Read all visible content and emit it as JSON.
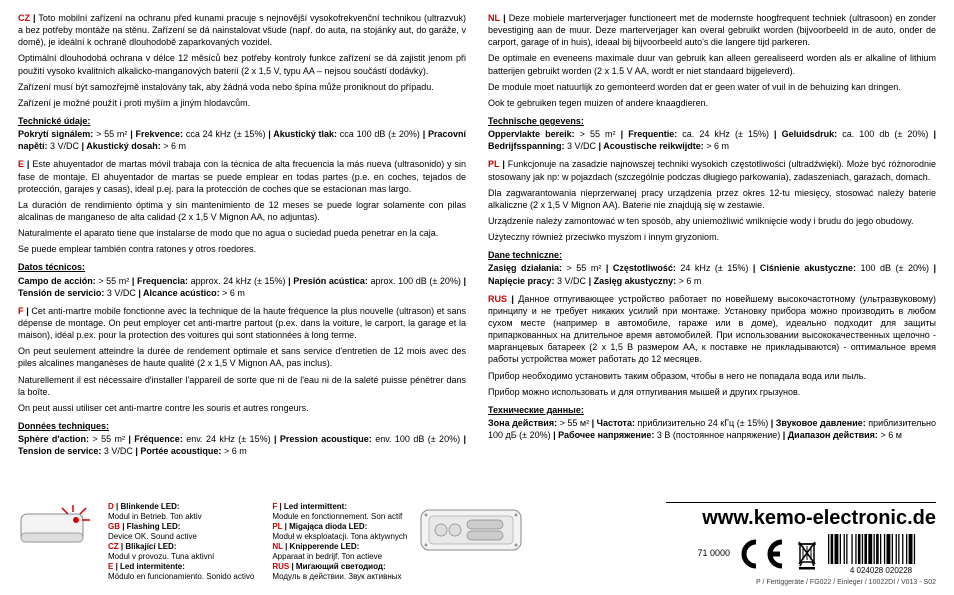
{
  "cz": {
    "lang": "CZ",
    "p1": "Toto mobilní zařízení na ochranu před kunami pracuje s nejnovější vysokofrekvenční technikou (ultrazvuk) a bez potřeby montáže na stěnu. Zařízení se dá nainstalovat všude (např. do auta, na stojánky aut, do garáže, v domě), je ideální k ochraně dlouhodobě zaparkovaných vozidel.",
    "p2": "Optimální dlouhodobá ochrana v délce 12 měsíců bez potřeby kontroly funkce zařízení se dá zajistit jenom při použití vysoko kvalitních alkalicko-manganových baterií (2 x 1,5 V, typu AA – nejsou součástí dodávky).",
    "p3": "Zařízení musí být samozřejmě instalovány tak, aby žádná voda nebo špína může proniknout do případu.",
    "p4": "Zařízení je možné použít i proti myším a jiným hlodavcům.",
    "techhead": "Technické údaje:",
    "tech": "<b>Pokrytí signálem:</b> > 55 m² <b>| Frekvence:</b> cca 24 kHz (± 15%) <b>| Akustický tlak:</b> cca 100 dB (± 20%) <b>| Pracovní napětí:</b> 3 V/DC <b>| Akustický dosah:</b> > 6 m"
  },
  "e": {
    "lang": "E",
    "p1": "Este ahuyentador de martas móvil trabaja con la técnica de alta frecuencia la más nueva (ultrasonido) y sin fase de montaje. El ahuyentador de martas se puede emplear en todas partes (p.e. en coches, tejados de protección, garajes y casas), ideal p.ej. para la protección de coches que se estacionan mas largo.",
    "p2": "La duración de rendimiento óptima y sin mantenimiento de 12 meses se puede lograr solamente con pilas alcalinas de manganeso de alta calidad (2 x 1,5 V Mignon AA, no adjuntas).",
    "p3": "Naturalmente el aparato tiene que instalarse de modo que no agua o suciedad pueda penetrar en la caja.",
    "p4": "Se puede emplear también contra ratones y otros roedores.",
    "techhead": "Datos técnicos:",
    "tech": "<b>Campo de acción:</b> > 55 m² <b>| Frequencia:</b> approx. 24 kHz (± 15%) <b>| Presión acústica:</b> aprox. 100 dB (± 20%) <b>| Tensión de servicio:</b> 3 V/DC <b>| Alcance acústico:</b> > 6 m"
  },
  "f": {
    "lang": "F",
    "p1": "Cet anti-martre mobile fonctionne avec la technique de la haute fréquence la plus nouvelle (ultrason) et sans dépense de montage. On peut employer cet anti-martre partout (p.ex. dans la voiture, le carport, la garage et la maison), idéal p.ex. pour la protection des voitures qui sont stationnées à long terme.",
    "p2": "On peut seulement atteindre la durée de rendement optimale et sans service d'entretien de 12 mois avec des piles alcalines manganèses de haute qualité (2 x 1,5 V Mignon AA, pas inclus).",
    "p3": "Naturellement il est nécessaire d'installer l'appareil de sorte que ni de l'eau ni de la saleté puisse pénétrer dans la boîte.",
    "p4": "On peut aussi utiliser cet anti-martre contre les souris et autres rongeurs.",
    "techhead": "Données techniques:",
    "tech": "<b>Sphère d'action:</b> > 55 m² <b>| Fréquence:</b> env. 24 kHz (± 15%) <b>| Pression acoustique:</b> env. 100 dB (± 20%) <b>| Tension de service:</b> 3 V/DC <b>| Portée acoustique:</b> > 6 m"
  },
  "nl": {
    "lang": "NL",
    "p1": "Deze mobiele marterverjager functioneert met de modernste hoogfrequent techniek (ultrasoon) en zonder bevestiging aan de muur. Deze marterverjager kan overal gebruikt worden (bijvoorbeeld in de auto, onder de carport, garage of in huis), ideaal bij bijvoorbeeld auto's die langere tijd parkeren.",
    "p2": "De optimale en eveneens maximale duur van gebruik kan alleen gerealiseerd worden als er alkaline of lithium batterijen gebruikt worden (2 x 1.5 V AA, wordt er niet standaard bijgeleverd).",
    "p3": "De module moet natuurlijk zo gemonteerd worden dat er geen water of vuil in de behuizing kan dringen.",
    "p4": "Ook te gebruiken tegen muizen of andere knaagdieren.",
    "techhead": "Technische gegevens:",
    "tech": "<b>Oppervlakte bereik:</b> > 55 m² <b>| Frequentie:</b> ca. 24 kHz (± 15%) <b>| Geluidsdruk:</b> ca. 100 db (± 20%) <b>| Bedrijfsspanning:</b> 3 V/DC <b>| Acoustische reikwijdte:</b> > 6 m"
  },
  "pl": {
    "lang": "PL",
    "p1": "Funkcjonuje na zasadzie najnowszej techniki wysokich częstotliwości (ultradźwięki). Może być różnorodnie stosowany jak np: w pojazdach (szczególnie podczas długiego parkowania), zadaszeniach, garażach, domach.",
    "p2": "Dla zagwarantowania nieprzerwanej pracy urządzenia przez okres 12-tu miesięcy, stosować należy baterie alkaliczne (2 x 1,5 V Mignon AA). Baterie nie znajdują się w zestawie.",
    "p3": "Urządzenie należy zamontować w ten sposób, aby uniemożliwić wniknięcie wody i brudu do jego obudowy.",
    "p4": "Użyteczny również przeciwko myszom i innym gryzoniom.",
    "techhead": "Dane techniczne:",
    "tech": "<b>Zasięg działania:</b> > 55 m² <b>| Częstotliwość:</b> 24 kHz (± 15%) <b>| Ciśnienie akustyczne:</b> 100 dB (± 20%) <b>| Napięcie pracy:</b> 3 V/DC <b>| Zasięg akustyczny:</b> > 6 m"
  },
  "rus": {
    "lang": "RUS",
    "p1": "Данное отпугивающее устройство работает по новейшему высокочастотному (ультразвуковому) принципу и не требует никаких усилий при монтаже. Установку прибора можно производить в любом сухом месте (например в автомобиле, гараже или в доме), идеально подходит для защиты припаркованных на длительное время автомобилей. При использовании высококачественных щелочно - марганцевых батареек (2 х 1,5 В размером АА, к поставке не прикладываются) - оптимальное время работы устройства может работать до 12 месяцев.",
    "p2": "Прибор необходимо установить таким образом, чтобы в него не попадала вода или пыль.",
    "p3": "Прибор можно использовать и для отпугивания мышей и других грызунов.",
    "techhead": "Технические данные:",
    "tech": "<b>Зона действия:</b> > 55 м² <b>| Частота:</b> приблизительно 24 кГц (± 15%) <b>| Звуковое давление:</b> приблизительно 100 дБ (± 20%) <b>| Рабочее напряжение:</b> 3 В (постоянное напряжение) <b>| Диапазон действия:</b> > 6 м"
  },
  "led": {
    "left": [
      {
        "lang": "D",
        "head": "Blinkende LED:",
        "body": "Modul in Betrieb. Ton aktiv"
      },
      {
        "lang": "GB",
        "head": "Flashing LED:",
        "body": "Device OK. Sound active"
      },
      {
        "lang": "CZ",
        "head": "Blikající LED:",
        "body": "Modul v provozu. Tuna aktivní"
      },
      {
        "lang": "E",
        "head": "Led intermitente:",
        "body": "Módulo en funcionamiento. Sonido activo"
      }
    ],
    "right": [
      {
        "lang": "F",
        "head": "Led intermittent:",
        "body": "Module en fonctionnement. Son actif"
      },
      {
        "lang": "PL",
        "head": "Migająca dioda LED:",
        "body": "Moduł w eksploatacji. Tona aktywnych"
      },
      {
        "lang": "NL",
        "head": "Knipperende LED:",
        "body": "Apparaat in bedrijf. Ton actieve"
      },
      {
        "lang": "RUS",
        "head": "Мигающий светодиод:",
        "body": "Модуль в действии. Звук активных"
      }
    ]
  },
  "website": "www.kemo-electronic.de",
  "partno": "71 0000",
  "barcode_text": "4 024028 020228",
  "footer": "P / Fertiggeräte / FG022 / Einleger / 10022DI / V013 - S02",
  "colors": {
    "accent": "#c00000"
  }
}
